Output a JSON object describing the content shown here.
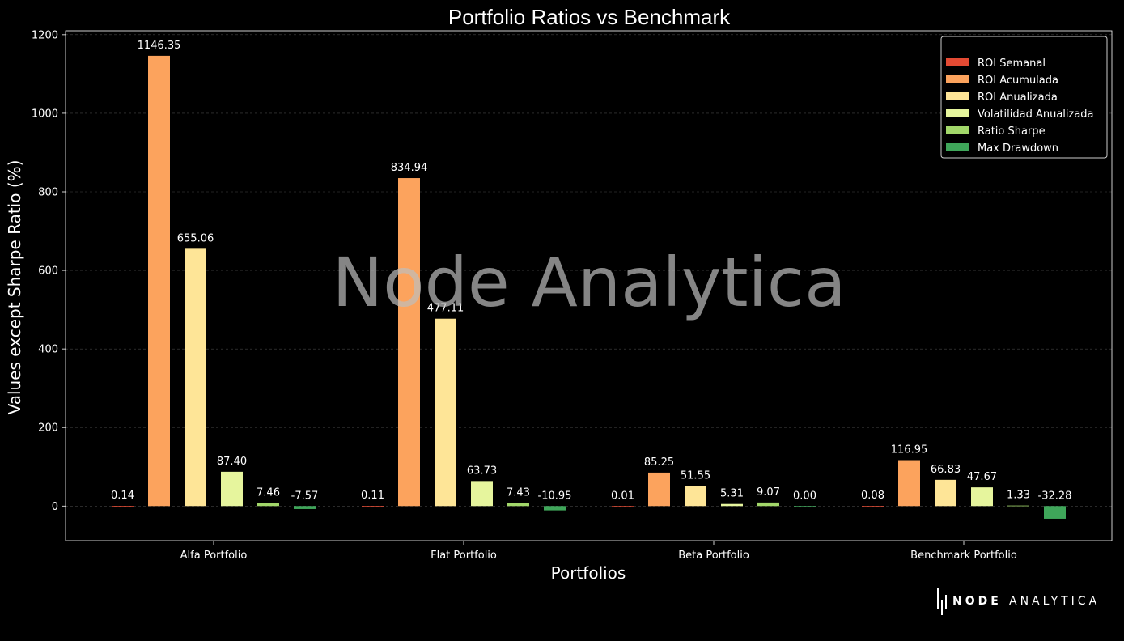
{
  "chart_data": {
    "type": "bar",
    "title": "Portfolio Ratios vs Benchmark",
    "xlabel": "Portfolios",
    "ylabel": "Values except Sharpe Ratio (%)",
    "categories": [
      "Alfa Portfolio",
      "Flat Portfolio",
      "Beta Portfolio",
      "Benchmark Portfolio"
    ],
    "ylim": [
      -88,
      1210
    ],
    "yticks": [
      0,
      200,
      400,
      600,
      800,
      1000,
      1200
    ],
    "grid": "horizontal dashed",
    "legend_position": "top-right",
    "series": [
      {
        "name": "ROI Semanal",
        "color": "#e34a33",
        "values": [
          0.14,
          0.11,
          0.01,
          0.08
        ],
        "labels": [
          "0.14",
          "0.11",
          "0.01",
          "0.08"
        ]
      },
      {
        "name": "ROI Acumulada",
        "color": "#fca35d",
        "values": [
          1146.35,
          834.94,
          85.25,
          116.95
        ],
        "labels": [
          "1146.35",
          "834.94",
          "85.25",
          "116.95"
        ]
      },
      {
        "name": "ROI Anualizada",
        "color": "#fee597",
        "values": [
          655.06,
          477.11,
          51.55,
          66.83
        ],
        "labels": [
          "655.06",
          "477.11",
          "51.55",
          "66.83"
        ]
      },
      {
        "name": "Volatilidad Anualizada",
        "color": "#e6f59d",
        "values": [
          87.4,
          63.73,
          5.31,
          47.67
        ],
        "labels": [
          "87.40",
          "63.73",
          "5.31",
          "47.67"
        ]
      },
      {
        "name": "Ratio Sharpe",
        "color": "#a2d76a",
        "values": [
          7.46,
          7.43,
          9.07,
          1.33
        ],
        "labels": [
          "7.46",
          "7.43",
          "9.07",
          "1.33"
        ]
      },
      {
        "name": "Max Drawdown",
        "color": "#3fa65a",
        "values": [
          -7.57,
          -10.95,
          0.0,
          -32.28
        ],
        "labels": [
          "-7.57",
          "-10.95",
          "0.00",
          "-32.28"
        ]
      }
    ]
  },
  "watermark": "Node Analytica",
  "logo": {
    "bold": "NODE",
    "regular": "ANALYTICA"
  },
  "colors": {
    "background": "#000000",
    "text": "#ffffff",
    "axes": "#ffffff"
  }
}
